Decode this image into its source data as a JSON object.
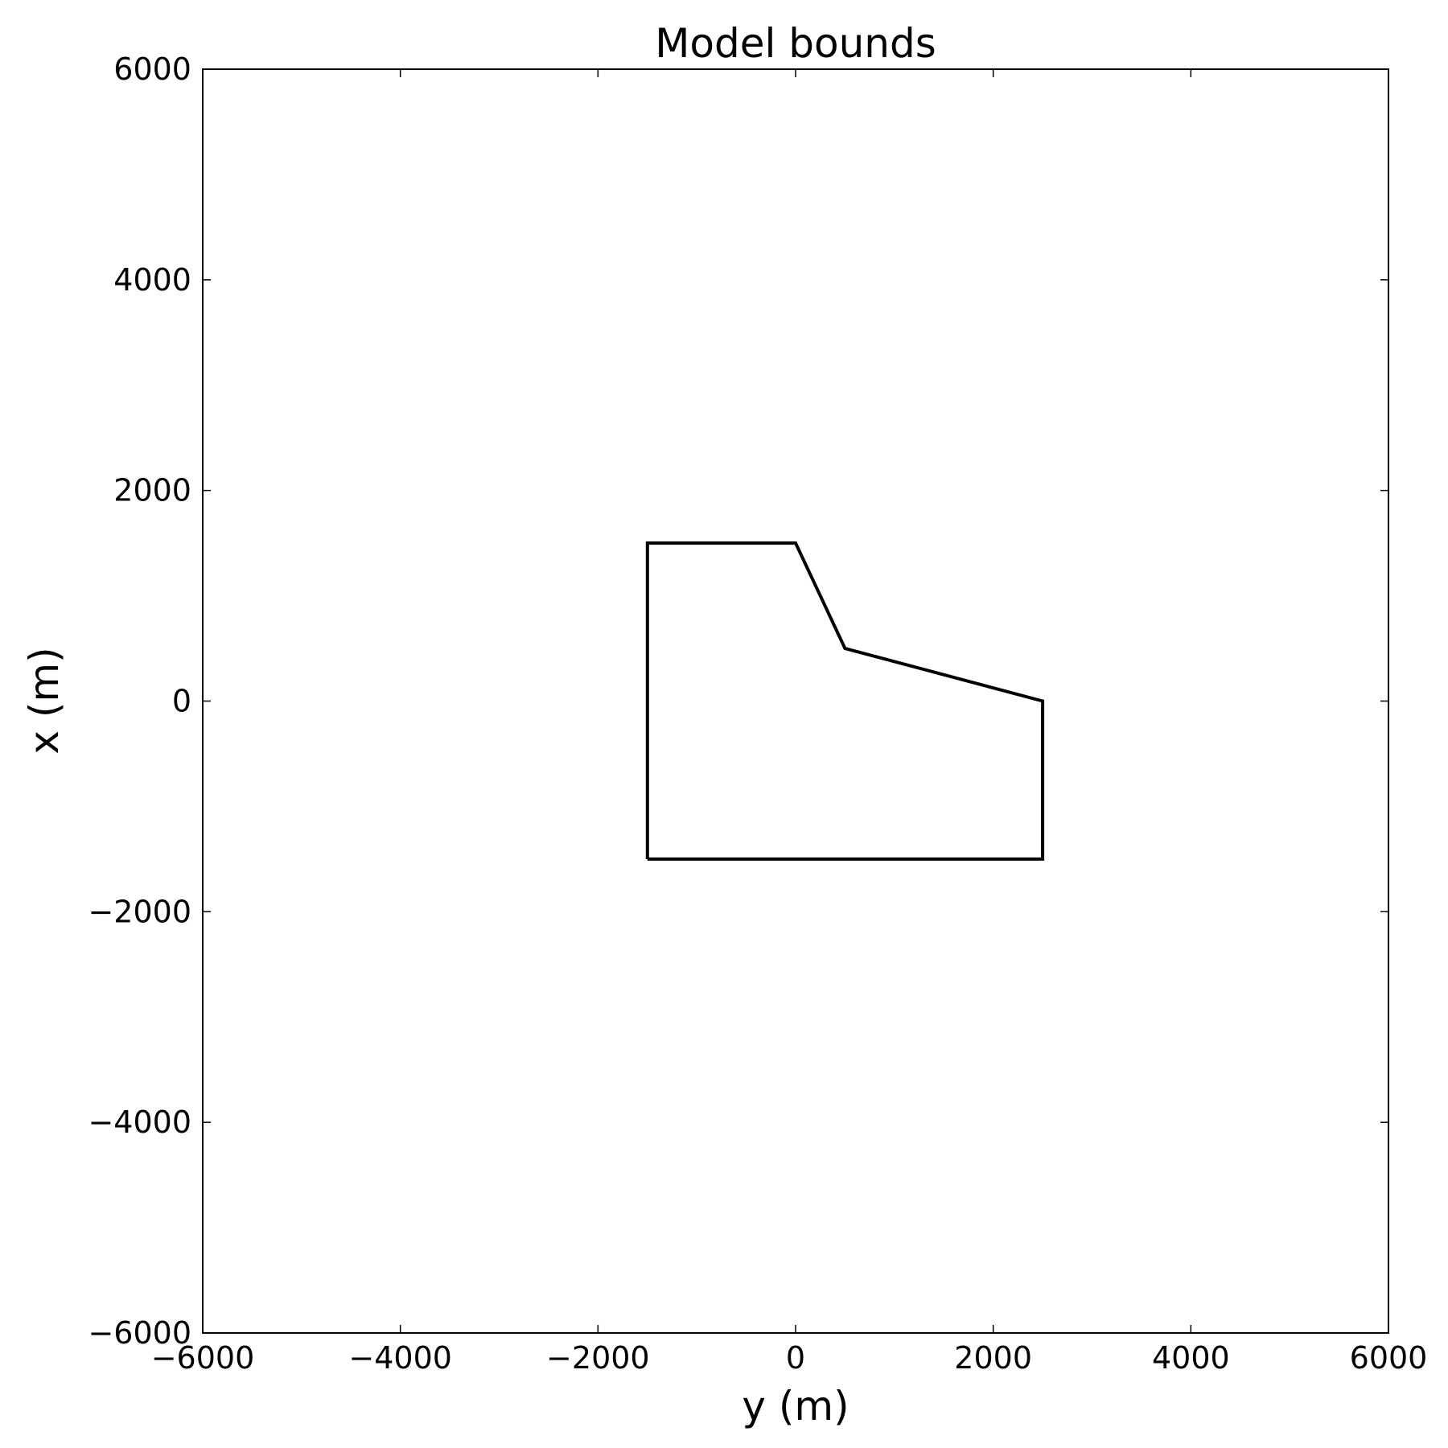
{
  "chart_data": {
    "type": "line",
    "title": "Model bounds",
    "xlabel": "y (m)",
    "ylabel": "x (m)",
    "xlim": [
      -6000,
      6000
    ],
    "ylim": [
      -6000,
      6000
    ],
    "xticks": [
      -6000,
      -4000,
      -2000,
      0,
      2000,
      4000,
      6000
    ],
    "yticks": [
      -6000,
      -4000,
      -2000,
      0,
      2000,
      4000,
      6000
    ],
    "xtick_labels": [
      "−6000",
      "−4000",
      "−2000",
      "0",
      "2000",
      "4000",
      "6000"
    ],
    "ytick_labels": [
      "−6000",
      "−4000",
      "−2000",
      "0",
      "2000",
      "4000",
      "6000"
    ],
    "grid": false,
    "series": [
      {
        "color": "#000000",
        "points": [
          {
            "x": -1500,
            "y": -1500
          },
          {
            "x": -1500,
            "y": 1500
          },
          {
            "x": 0,
            "y": 1500
          },
          {
            "x": 500,
            "y": 500
          },
          {
            "x": 2500,
            "y": 0
          },
          {
            "x": 2500,
            "y": -1500
          },
          {
            "x": -1500,
            "y": -1500
          }
        ]
      }
    ]
  }
}
